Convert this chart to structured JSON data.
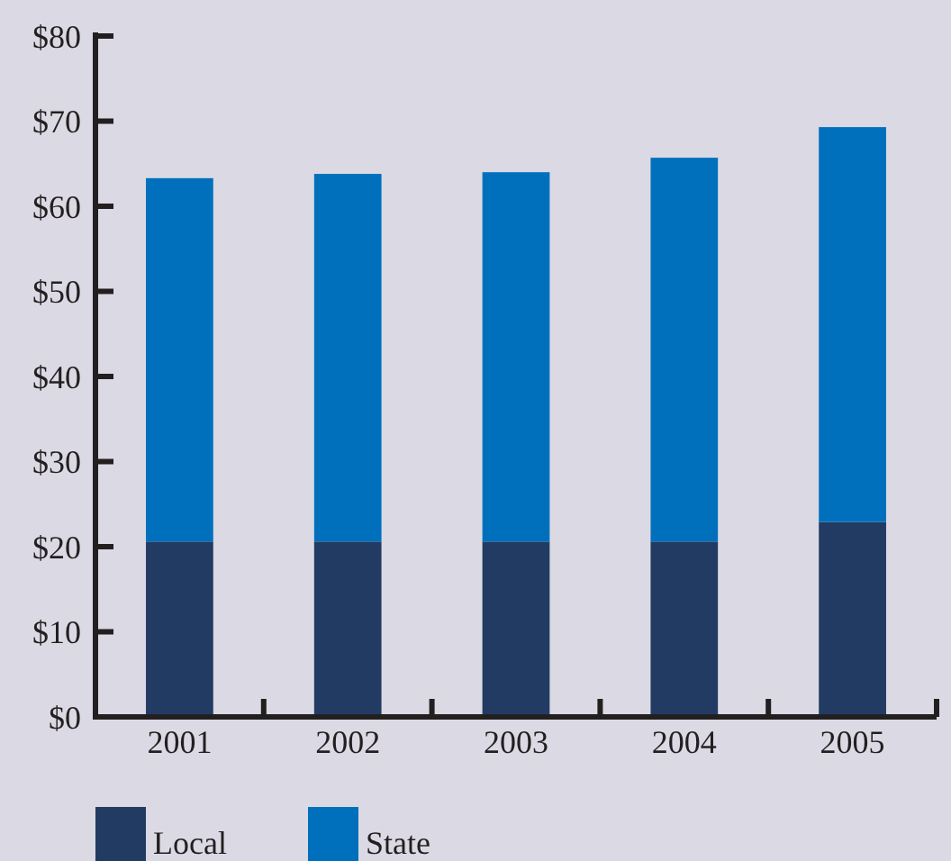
{
  "chart_data": {
    "type": "bar",
    "stacked": true,
    "categories": [
      "2001",
      "2002",
      "2003",
      "2004",
      "2005"
    ],
    "series": [
      {
        "name": "Local",
        "color": "#213b63",
        "values": [
          20.6,
          20.6,
          20.6,
          20.6,
          22.9
        ]
      },
      {
        "name": "State",
        "color": "#0070bc",
        "values": [
          42.7,
          43.2,
          43.4,
          45.1,
          46.4
        ]
      }
    ],
    "ylim": [
      0,
      80
    ],
    "yticks": [
      {
        "value": 0,
        "label": "$0"
      },
      {
        "value": 10,
        "label": "$10"
      },
      {
        "value": 20,
        "label": "$20"
      },
      {
        "value": 30,
        "label": "$30"
      },
      {
        "value": 40,
        "label": "$40"
      },
      {
        "value": 50,
        "label": "$50"
      },
      {
        "value": 60,
        "label": "$60"
      },
      {
        "value": 70,
        "label": "$70"
      },
      {
        "value": 80,
        "label": "$80"
      }
    ],
    "legend": "bottom"
  }
}
